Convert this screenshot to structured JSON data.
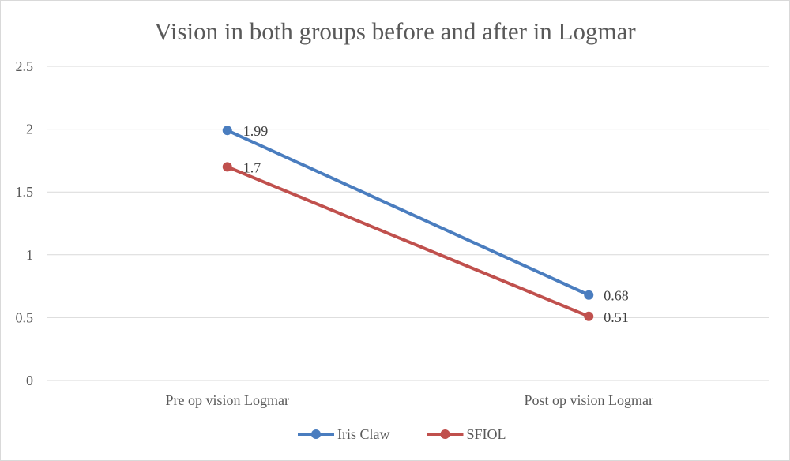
{
  "chart_data": {
    "type": "line",
    "title": "Vision in both groups  before and after in Logmar",
    "xlabel": "",
    "ylabel": "",
    "categories": [
      "Pre op vision Logmar",
      "Post op vision Logmar"
    ],
    "ylim": [
      0,
      2.5
    ],
    "yticks": [
      "0",
      "0.5",
      "1",
      "1.5",
      "2",
      "2.5"
    ],
    "grid": true,
    "legend_position": "bottom",
    "series": [
      {
        "name": "Iris Claw",
        "color": "#4a7dbf",
        "values": [
          1.99,
          0.68
        ],
        "labels": [
          "1.99",
          "0.68"
        ]
      },
      {
        "name": "SFIOL",
        "color": "#c0504d",
        "values": [
          1.7,
          0.51
        ],
        "labels": [
          "1.7",
          "0.51"
        ]
      }
    ]
  }
}
